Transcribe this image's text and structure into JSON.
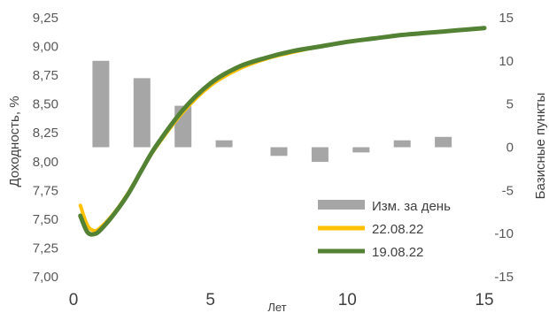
{
  "chart_data": {
    "type": "bar+line",
    "xlabel": "Лет",
    "ylabel_left": "Доходность, %",
    "ylabel_right": "Базисные пункты",
    "x_ticks": [
      "0",
      "5",
      "10",
      "15"
    ],
    "xlim": [
      0,
      15
    ],
    "y_left_ticks": [
      "7,00",
      "7,25",
      "7,50",
      "7,75",
      "8,00",
      "8,25",
      "8,50",
      "8,75",
      "9,00",
      "9,25"
    ],
    "ylim_left": [
      7.0,
      9.25
    ],
    "y_right_ticks": [
      "-15",
      "-10",
      "-5",
      "0",
      "5",
      "10",
      "15"
    ],
    "ylim_right": [
      -15,
      15
    ],
    "grid": false,
    "legend_position": "bottom-right",
    "bars": {
      "name": "Изм. за день",
      "color": "#a6a6a6",
      "x": [
        1,
        2.5,
        4,
        5.5,
        7.5,
        9,
        10.5,
        12,
        13.5
      ],
      "values": [
        10,
        8,
        4.8,
        0.8,
        -1,
        -1.7,
        -0.6,
        0.8,
        1.2
      ]
    },
    "series": [
      {
        "name": "22.08.22",
        "color": "#ffc000",
        "x": [
          0.25,
          0.5,
          0.75,
          1,
          1.5,
          2,
          2.5,
          3,
          4,
          5,
          6,
          7,
          8,
          9,
          10,
          11,
          12,
          13,
          14,
          15
        ],
        "values": [
          7.62,
          7.45,
          7.4,
          7.43,
          7.56,
          7.73,
          7.93,
          8.12,
          8.43,
          8.66,
          8.8,
          8.89,
          8.95,
          9.0,
          9.04,
          9.07,
          9.1,
          9.12,
          9.14,
          9.16
        ]
      },
      {
        "name": "19.08.22",
        "color": "#548235",
        "x": [
          0.25,
          0.5,
          0.75,
          1,
          1.5,
          2,
          2.5,
          3,
          4,
          5,
          6,
          7,
          8,
          9,
          10,
          11,
          12,
          13,
          14,
          15
        ],
        "values": [
          7.53,
          7.39,
          7.37,
          7.41,
          7.55,
          7.72,
          7.93,
          8.13,
          8.45,
          8.68,
          8.82,
          8.9,
          8.96,
          9.0,
          9.04,
          9.07,
          9.1,
          9.12,
          9.14,
          9.16
        ]
      }
    ]
  }
}
